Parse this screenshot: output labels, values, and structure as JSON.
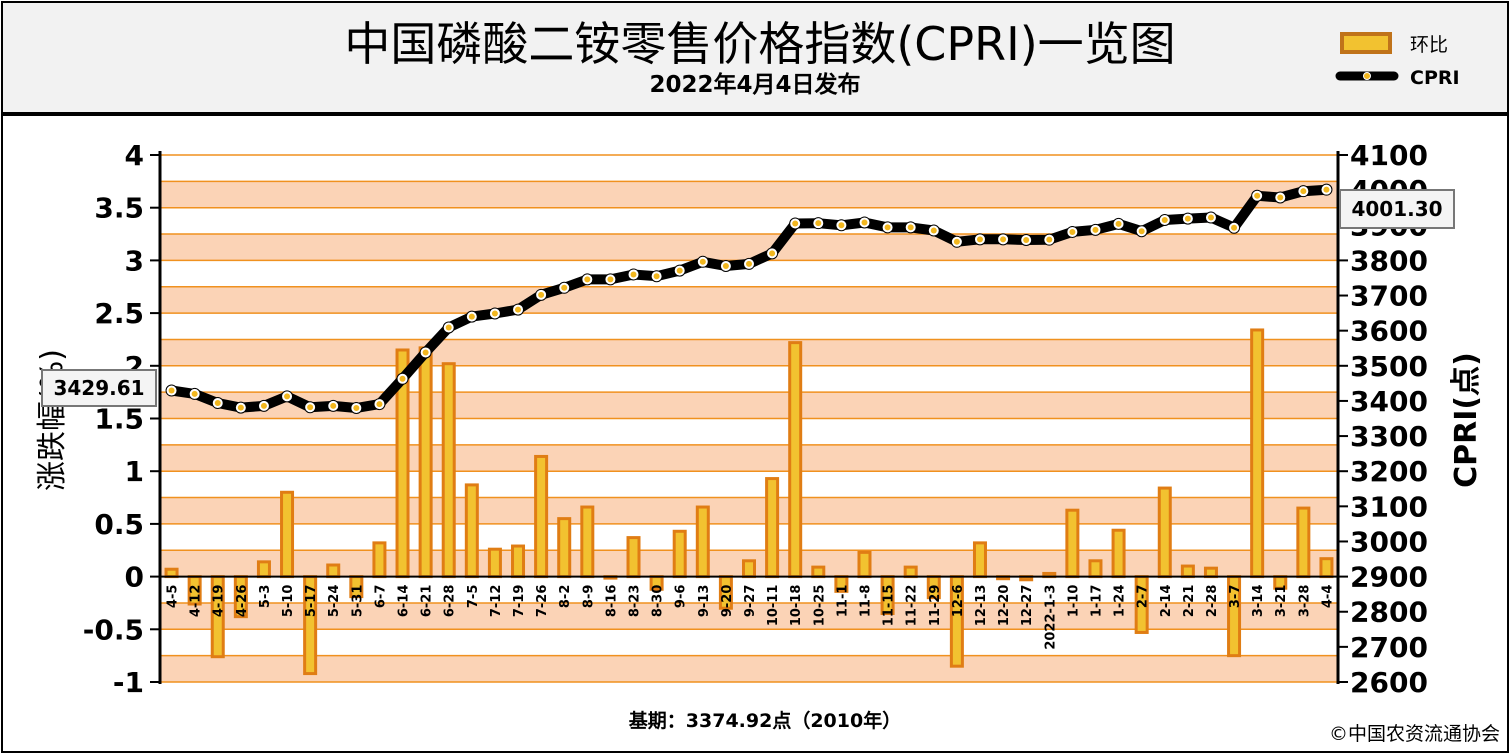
{
  "header": {
    "title": "中国磷酸二铵零售价格指数(CPRI)一览图",
    "subtitle": "2022年4月4日发布"
  },
  "legend": {
    "bar_label": "环比",
    "line_label": "CPRI"
  },
  "callouts": {
    "start_value": "3429.61",
    "end_value": "4001.30"
  },
  "footer": {
    "base_period": "基期：3374.92点（2010年）",
    "copyright": "©中国农资流通协会"
  },
  "colors": {
    "bar_gold": "#f2c230",
    "bar_orange": "#e07d14",
    "band_light": "#fbd3b6",
    "grid_orange": "#f0911f",
    "line": "#000000",
    "marker": "#f2b71f"
  },
  "chart_data": {
    "type": "bar+line",
    "title": "中国磷酸二铵零售价格指数(CPRI)一览图",
    "categories": [
      "4-5",
      "4-12",
      "4-19",
      "4-26",
      "5-3",
      "5-10",
      "5-17",
      "5-24",
      "5-31",
      "6-7",
      "6-14",
      "6-21",
      "6-28",
      "7-5",
      "7-12",
      "7-19",
      "7-26",
      "8-2",
      "8-9",
      "8-16",
      "8-23",
      "8-30",
      "9-6",
      "9-13",
      "9-20",
      "9-27",
      "10-11",
      "10-18",
      "10-25",
      "11-1",
      "11-8",
      "11-15",
      "11-22",
      "11-29",
      "12-6",
      "12-13",
      "12-20",
      "12-27",
      "2022-1-3",
      "1-10",
      "1-17",
      "1-24",
      "2-7",
      "2-14",
      "2-21",
      "2-28",
      "3-7",
      "3-14",
      "3-21",
      "3-28",
      "4-4"
    ],
    "y_left": {
      "label": "涨跌幅(%)",
      "ylim": [
        -1,
        4
      ],
      "ticks": [
        "-1",
        "-0.5",
        "0",
        "0.5",
        "1",
        "1.5",
        "2",
        "2.5",
        "3",
        "3.5",
        "4"
      ]
    },
    "y_right": {
      "label": "CPRI(点)",
      "ylim": [
        2600,
        4100
      ],
      "ticks": [
        "2600",
        "2700",
        "2800",
        "2900",
        "3000",
        "3100",
        "3200",
        "3300",
        "3400",
        "3500",
        "3600",
        "3700",
        "3800",
        "3900",
        "4000",
        "4100"
      ]
    },
    "grid": true,
    "legend_position": "top-right",
    "series": [
      {
        "name": "环比",
        "type": "bar",
        "axis": "left",
        "values": [
          0.07,
          -0.26,
          -0.76,
          -0.38,
          0.14,
          0.8,
          -0.92,
          0.11,
          -0.19,
          0.32,
          2.15,
          2.17,
          2.02,
          0.87,
          0.26,
          0.29,
          1.14,
          0.55,
          0.66,
          0.0,
          0.37,
          -0.12,
          0.43,
          0.66,
          -0.3,
          0.15,
          0.93,
          2.22,
          0.09,
          -0.14,
          0.23,
          -0.35,
          0.09,
          -0.2,
          -0.85,
          0.32,
          -0.02,
          -0.03,
          0.03,
          0.63,
          0.15,
          0.44,
          -0.53,
          0.84,
          0.1,
          0.08,
          -0.75,
          2.34,
          -0.11,
          0.65,
          0.17
        ]
      },
      {
        "name": "CPRI",
        "type": "line",
        "axis": "right",
        "values": [
          3429.61,
          3420,
          3394,
          3381,
          3386,
          3413,
          3382,
          3386,
          3380,
          3391,
          3463,
          3538,
          3609,
          3640,
          3649,
          3660,
          3702,
          3722,
          3746,
          3746,
          3760,
          3755,
          3771,
          3796,
          3784,
          3790,
          3820,
          3905,
          3906,
          3900,
          3908,
          3894,
          3894,
          3885,
          3853,
          3860,
          3860,
          3858,
          3859,
          3881,
          3887,
          3904,
          3883,
          3915,
          3919,
          3922,
          3893,
          3984,
          3979,
          3997,
          4001.3
        ]
      }
    ]
  }
}
